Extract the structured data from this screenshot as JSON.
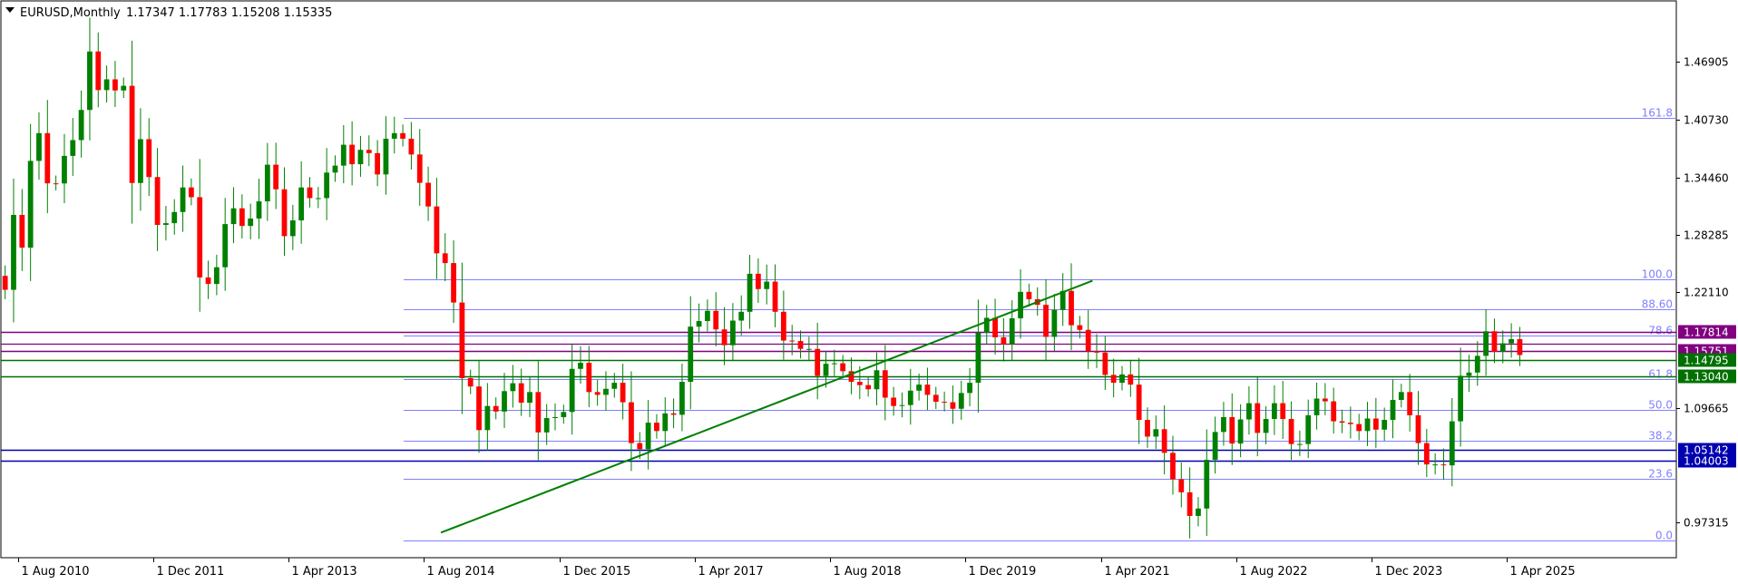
{
  "header": {
    "symbol": "EURUSD,Monthly",
    "ohlc": "1.17347 1.17783 1.15208 1.15335"
  },
  "colors": {
    "bull": "#008000",
    "bear": "#ff0000",
    "wick": "#008000",
    "fib": "#8080ff",
    "purple": "#800080",
    "green_level": "#007000",
    "blue_level": "#0000b0",
    "trendline": "#008000"
  },
  "chart_data": {
    "type": "candlestick",
    "instrument": "EURUSD",
    "timeframe": "Monthly",
    "x_range": [
      "2010-06",
      "2026-12"
    ],
    "ylim": [
      0.935,
      1.535
    ],
    "y_ticks": [
      "1.46905",
      "1.40730",
      "1.34460",
      "1.28285",
      "1.22110",
      "1.09665",
      "0.97315"
    ],
    "x_ticks": [
      {
        "date": "2010-08",
        "label": "1 Aug 2010"
      },
      {
        "date": "2011-12",
        "label": "1 Dec 2011"
      },
      {
        "date": "2013-04",
        "label": "1 Apr 2013"
      },
      {
        "date": "2014-08",
        "label": "1 Aug 2014"
      },
      {
        "date": "2015-12",
        "label": "1 Dec 2015"
      },
      {
        "date": "2017-04",
        "label": "1 Apr 2017"
      },
      {
        "date": "2018-08",
        "label": "1 Aug 2018"
      },
      {
        "date": "2019-12",
        "label": "1 Dec 2019"
      },
      {
        "date": "2021-04",
        "label": "1 Apr 2021"
      },
      {
        "date": "2022-08",
        "label": "1 Aug 2022"
      },
      {
        "date": "2023-12",
        "label": "1 Dec 2023"
      },
      {
        "date": "2025-04",
        "label": "1 Apr 2025"
      }
    ],
    "candles": {
      "start": "2010-06",
      "close_path": [
        1.2237,
        1.3044,
        1.2691,
        1.3626,
        1.3925,
        1.3384,
        1.3383,
        1.368,
        1.385,
        1.4175,
        1.4805,
        1.4389,
        1.4505,
        1.4385,
        1.4435,
        1.3388,
        1.386,
        1.3452,
        1.2936,
        1.2955,
        1.3075,
        1.334,
        1.3235,
        1.237,
        1.23,
        1.248,
        1.2945,
        1.3115,
        1.2925,
        1.3005,
        1.319,
        1.3585,
        1.332,
        1.2815,
        1.2985,
        1.334,
        1.3225,
        1.3225,
        1.35,
        1.3575,
        1.38,
        1.359,
        1.3745,
        1.371,
        1.348,
        1.3865,
        1.3925,
        1.3865,
        1.3695,
        1.339,
        1.3135,
        1.263,
        1.2525,
        1.21,
        1.1285,
        1.1195,
        1.0725,
        1.0985,
        1.0925,
        1.1145,
        1.123,
        1.102,
        1.1135,
        1.07,
        1.0855,
        1.0865,
        1.092,
        1.1385,
        1.145,
        1.1135,
        1.1105,
        1.117,
        1.1235,
        1.1025,
        1.0585,
        1.052,
        1.0805,
        1.0715,
        1.0905,
        1.089,
        1.1245,
        1.184,
        1.19,
        1.201,
        1.181,
        1.164,
        1.1905,
        1.2,
        1.241,
        1.2245,
        1.2325,
        1.2,
        1.169,
        1.1685,
        1.16,
        1.16,
        1.131,
        1.144,
        1.1445,
        1.136,
        1.1245,
        1.121,
        1.1165,
        1.137,
        1.1075,
        1.0985,
        1.0995,
        1.115,
        1.1215,
        1.1105,
        1.103,
        1.1025,
        1.0955,
        1.1125,
        1.1235,
        1.1775,
        1.1935,
        1.1725,
        1.165,
        1.193,
        1.2215,
        1.2135,
        1.2075,
        1.173,
        1.202,
        1.2225,
        1.1855,
        1.1805,
        1.1575,
        1.156,
        1.132,
        1.1235,
        1.1325,
        1.1215,
        1.0835,
        1.0655,
        1.0735,
        1.048,
        1.0195,
        1.0055,
        0.98,
        0.988,
        1.0405,
        1.0705,
        1.0865,
        1.058,
        1.084,
        1.1015,
        1.0695,
        1.0845,
        1.1015,
        1.0845,
        1.0575,
        1.0575,
        1.0885,
        1.1065,
        1.1035,
        1.082,
        1.0805,
        1.079,
        1.0715,
        1.085,
        1.073,
        1.0835,
        1.105,
        1.1135,
        1.0885,
        1.0585,
        1.0355,
        1.0355,
        1.0345,
        1.082,
        1.131,
        1.1345,
        1.1525,
        1.179,
        1.157,
        1.166,
        1.1705,
        1.1534
      ]
    },
    "fibonacci": {
      "low": 0.9535,
      "high": 1.2349,
      "levels": [
        {
          "label": "0.0",
          "price": 0.9535
        },
        {
          "label": "23.6",
          "price": 1.0199
        },
        {
          "label": "38.2",
          "price": 1.061
        },
        {
          "label": "50.0",
          "price": 1.0942
        },
        {
          "label": "61.8",
          "price": 1.1274
        },
        {
          "label": "78.6",
          "price": 1.1746
        },
        {
          "label": "88.60",
          "price": 1.2028
        },
        {
          "label": "100.0",
          "price": 1.2349
        },
        {
          "label": "161.8",
          "price": 1.4088
        }
      ]
    },
    "horizontal_levels": [
      {
        "label": "1.17814",
        "price": 1.17814,
        "color": "#800080"
      },
      {
        "label": "1.15751",
        "price": 1.15751,
        "color": "#800080"
      },
      {
        "label": "1.14795",
        "price": 1.14795,
        "color": "#007000"
      },
      {
        "label": "1.13040",
        "price": 1.1304,
        "color": "#007000"
      },
      {
        "label": "1.05142",
        "price": 1.05142,
        "color": "#0000b0"
      },
      {
        "label": "1.04003",
        "price": 1.04003,
        "color": "#0000b0"
      }
    ],
    "extra_lines": [
      {
        "price": 1.1655,
        "color": "#800080"
      }
    ],
    "trendline": {
      "from": {
        "date": "2014-10",
        "price": 0.962
      },
      "to": {
        "date": "2021-03",
        "price": 1.2335
      }
    }
  }
}
